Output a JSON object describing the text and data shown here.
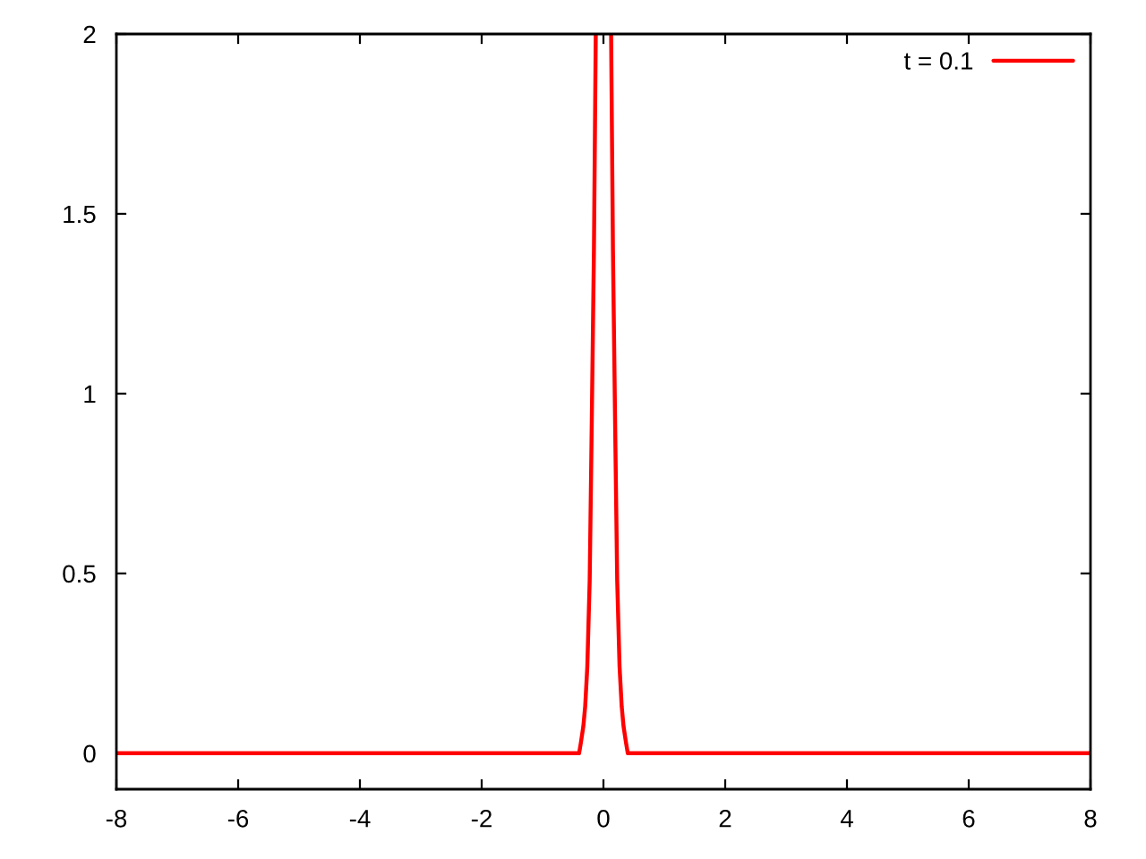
{
  "chart_data": {
    "type": "line",
    "x": [
      -8,
      -0.4,
      -0.37,
      -0.33,
      -0.3,
      -0.265,
      -0.226,
      -0.197,
      -0.156,
      -0.126,
      0,
      0.126,
      0.156,
      0.197,
      0.226,
      0.265,
      0.3,
      0.33,
      0.37,
      0.4,
      8
    ],
    "series": [
      {
        "name": "t = 0.1",
        "color": "#ff0000",
        "values": [
          0,
          0,
          0.03,
          0.075,
          0.13,
          0.24,
          0.48,
          0.85,
          1.4,
          2,
          null,
          2,
          1.4,
          0.85,
          0.48,
          0.24,
          0.13,
          0.075,
          0.03,
          0,
          0
        ]
      }
    ],
    "xlim": [
      -8,
      8
    ],
    "ylim": [
      -0.1,
      2
    ],
    "xticks": [
      -8,
      -6,
      -4,
      -2,
      0,
      2,
      4,
      6,
      8
    ],
    "yticks": [
      0,
      0.5,
      1,
      1.5,
      2
    ],
    "legend": "top right",
    "line_style": "solid"
  }
}
